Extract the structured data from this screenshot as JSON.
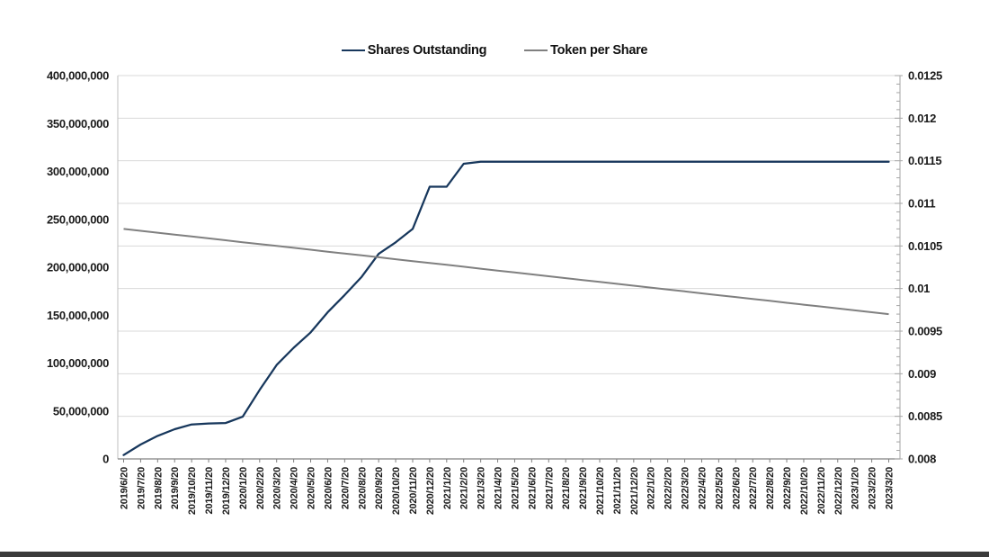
{
  "legend": [
    {
      "label": "Shares Outstanding",
      "color": "#17375c"
    },
    {
      "label": "Token per Share",
      "color": "#808080"
    }
  ],
  "style": {
    "navy": "#17375c",
    "gray": "#808080",
    "grid_color": "#d9d9d9",
    "border_color": "#bfbfbf",
    "axis_color": "#a6a6a6",
    "axis_line_color": "#808080",
    "text_color": "#1a1a1a",
    "bottom_bar": "#3a3a3a",
    "background": "#ffffff"
  },
  "chart_data": {
    "type": "line",
    "title": "",
    "legend_position": "top-center",
    "grid": "horizontal gridlines at secondary-axis steps, light gray",
    "categories": [
      "2019/6/20",
      "2019/7/20",
      "2019/8/20",
      "2019/9/20",
      "2019/10/20",
      "2019/11/20",
      "2019/12/20",
      "2020/1/20",
      "2020/2/20",
      "2020/3/20",
      "2020/4/20",
      "2020/5/20",
      "2020/6/20",
      "2020/7/20",
      "2020/8/20",
      "2020/9/20",
      "2020/10/20",
      "2020/11/20",
      "2020/12/20",
      "2021/1/20",
      "2021/2/20",
      "2021/3/20",
      "2021/4/20",
      "2021/5/20",
      "2021/6/20",
      "2021/7/20",
      "2021/8/20",
      "2021/9/20",
      "2021/10/20",
      "2021/11/20",
      "2021/12/20",
      "2022/1/20",
      "2022/2/20",
      "2022/3/20",
      "2022/4/20",
      "2022/5/20",
      "2022/6/20",
      "2022/7/20",
      "2022/8/20",
      "2022/9/20",
      "2022/10/20",
      "2022/11/20",
      "2022/12/20",
      "2023/1/20",
      "2023/2/20",
      "2023/3/20"
    ],
    "series": [
      {
        "name": "Shares Outstanding",
        "axis": "left",
        "color": "#17375c",
        "values": [
          4000000,
          15000000,
          24000000,
          31000000,
          36000000,
          37000000,
          37500000,
          44000000,
          72000000,
          98000000,
          116000000,
          132000000,
          153000000,
          171000000,
          190000000,
          214000000,
          226000000,
          240000000,
          284000000,
          284000000,
          308000000,
          310000000,
          310000000,
          310000000,
          310000000,
          310000000,
          310000000,
          310000000,
          310000000,
          310000000,
          310000000,
          310000000,
          310000000,
          310000000,
          310000000,
          310000000,
          310000000,
          310000000,
          310000000,
          310000000,
          310000000,
          310000000,
          310000000,
          310000000,
          310000000,
          310000000
        ]
      },
      {
        "name": "Token per Share",
        "axis": "right",
        "color": "#808080",
        "values": [
          0.0107,
          0.010678,
          0.010656,
          0.010633,
          0.010611,
          0.010589,
          0.010567,
          0.010544,
          0.010522,
          0.0105,
          0.010478,
          0.010456,
          0.010433,
          0.010411,
          0.010389,
          0.010367,
          0.010344,
          0.010322,
          0.0103,
          0.010278,
          0.010256,
          0.010233,
          0.010211,
          0.010189,
          0.010167,
          0.010144,
          0.010122,
          0.0101,
          0.010078,
          0.010056,
          0.010033,
          0.010011,
          0.009989,
          0.009967,
          0.009944,
          0.009922,
          0.0099,
          0.009878,
          0.009856,
          0.009833,
          0.009811,
          0.009789,
          0.009767,
          0.009744,
          0.009722,
          0.0097
        ]
      }
    ],
    "left_axis": {
      "min": 0,
      "max": 400000000,
      "step": 50000000,
      "tick_labels": [
        "0",
        "50,000,000",
        "100,000,000",
        "150,000,000",
        "200,000,000",
        "250,000,000",
        "300,000,000",
        "350,000,000",
        "400,000,000"
      ]
    },
    "right_axis": {
      "min": 0.008,
      "max": 0.0125,
      "step": 0.0005,
      "minor_step": 0.0001,
      "tick_labels": [
        "0.008",
        "0.0085",
        "0.009",
        "0.0095",
        "0.01",
        "0.0105",
        "0.011",
        "0.0115",
        "0.012",
        "0.0125"
      ]
    }
  }
}
